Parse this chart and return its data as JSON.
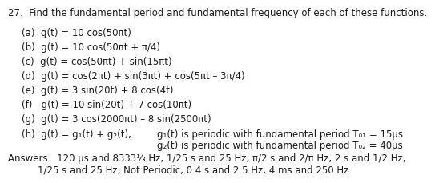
{
  "title": "27.  Find the fundamental period and fundamental frequency of each of these functions.",
  "lines": [
    "(a)  g(t) = 10 cos(50πt)",
    "(b)  g(t) = 10 cos(50πt + π/4)",
    "(c)  g(t) = cos(50πt) + sin(15πt)",
    "(d)  g(t) = cos(2πt) + sin(3πt) + cos(5πt – 3π/4)",
    "(e)  g(t) = 3 sin(20t) + 8 cos(4t)",
    "(f)   g(t) = 10 sin(20t) + 7 cos(10πt)",
    "(g)  g(t) = 3 cos(2000πt) – 8 sin(2500πt)"
  ],
  "h_left": "(h)  g(t) = g₁(t) + g₂(t),",
  "h_right1": "g₁(t) is periodic with fundamental period T₀₁ = 15μs",
  "h_right2": "g₂(t) is periodic with fundamental period T₀₂ = 40μs",
  "ans1": "Answers:  120 μs and 8333⅓ Hz, 1/25 s and 25 Hz, π/2 s and 2/π Hz, 2 s and 1/2 Hz,",
  "ans2": "1/25 s and 25 Hz, Not Periodic, 0.4 s and 2.5 Hz, 4 ms and 250 Hz",
  "bg_color": "#ffffff",
  "text_color": "#1a1a1a",
  "font_size": 8.5
}
